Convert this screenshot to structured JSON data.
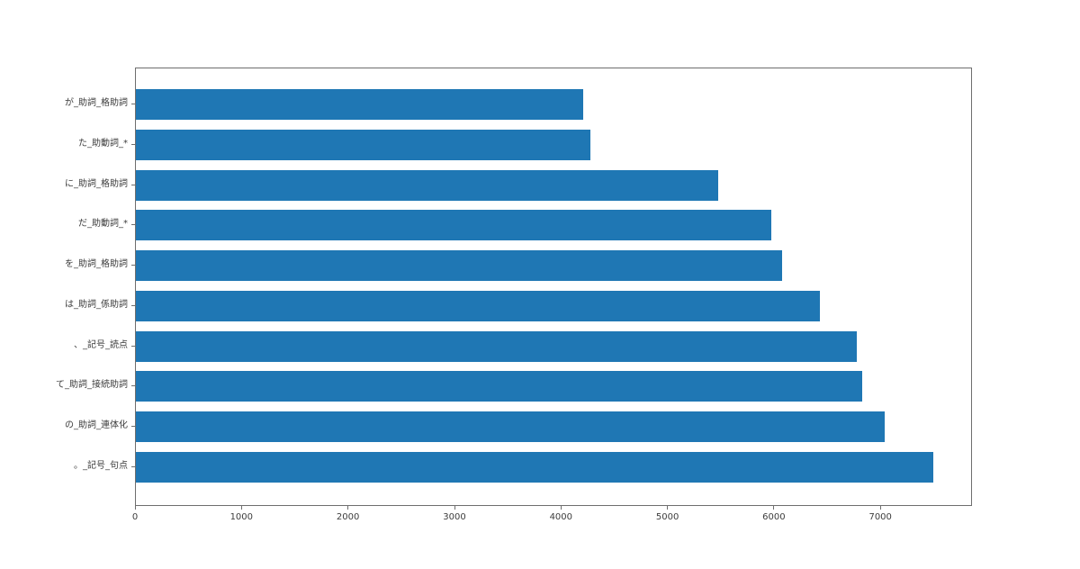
{
  "chart_data": {
    "type": "bar",
    "orientation": "horizontal",
    "title": "",
    "xlabel": "",
    "ylabel": "",
    "category_order": "top-to-bottom",
    "categories": [
      "が_助詞_格助詞",
      "た_助動詞_*",
      "に_助詞_格助詞",
      "だ_助動詞_*",
      "を_助詞_格助詞",
      "は_助詞_係助詞",
      "、_記号_読点",
      "て_助詞_接続助詞",
      "の_助詞_連体化",
      "。_記号_句点"
    ],
    "values": [
      4200,
      4270,
      5465,
      5970,
      6070,
      6420,
      6770,
      6820,
      7030,
      7490
    ],
    "x_ticks": [
      0,
      1000,
      2000,
      3000,
      4000,
      5000,
      6000,
      7000
    ],
    "x_tick_labels": [
      "0",
      "1000",
      "2000",
      "3000",
      "4000",
      "5000",
      "6000",
      "7000"
    ],
    "xlim": [
      0,
      7860
    ],
    "bar_color": "#1f77b4",
    "grid": false,
    "legend": null
  }
}
